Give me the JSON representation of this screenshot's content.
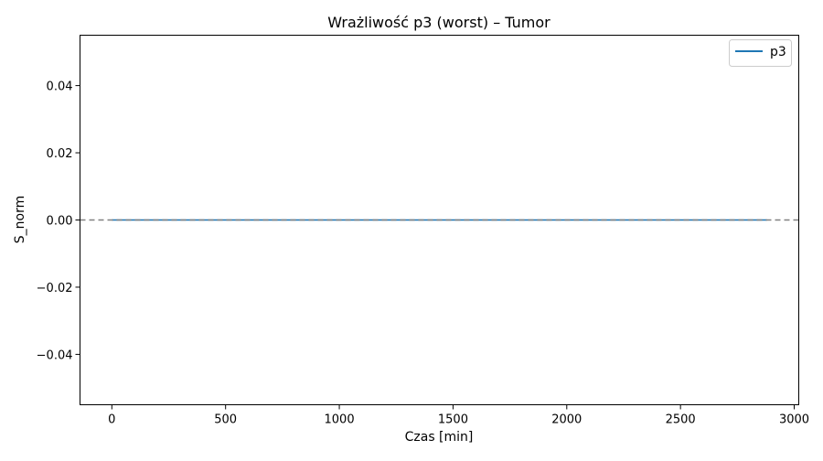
{
  "chart_data": {
    "type": "line",
    "title": "Wrażliwość p3 (worst) – Tumor",
    "xlabel": "Czas [min]",
    "ylabel": "S_norm",
    "xlim": [
      -140,
      3020
    ],
    "ylim": [
      -0.055,
      0.055
    ],
    "xticks": [
      0,
      500,
      1000,
      1500,
      2000,
      2500,
      3000
    ],
    "xtick_labels": [
      "0",
      "500",
      "1000",
      "1500",
      "2000",
      "2500",
      "3000"
    ],
    "yticks": [
      -0.04,
      -0.02,
      0.0,
      0.02,
      0.04
    ],
    "ytick_labels": [
      "−0.04",
      "−0.02",
      "0.00",
      "0.02",
      "0.04"
    ],
    "grid": false,
    "legend_position": "top-right",
    "reference_line": {
      "y": 0,
      "style": "dashed",
      "color": "#808080"
    },
    "series": [
      {
        "name": "p3",
        "color": "#1f77b4",
        "x": [
          0,
          2880
        ],
        "y": [
          0,
          0
        ]
      }
    ]
  }
}
